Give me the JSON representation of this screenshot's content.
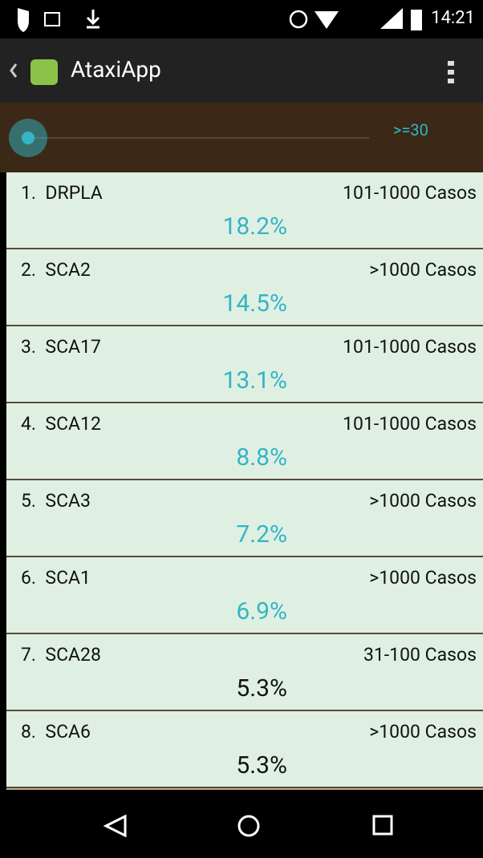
{
  "status_bar": {
    "time": "14:21"
  },
  "action_bar": {
    "title": "AtaxiApp"
  },
  "filter": {
    "label": ">=30"
  },
  "list": {
    "items": [
      {
        "rank": "1.",
        "name": "DRPLA",
        "cases": "101-1000 Casos",
        "percent": "18.2%",
        "color": "#33b5c5"
      },
      {
        "rank": "2.",
        "name": "SCA2",
        "cases": ">1000 Casos",
        "percent": "14.5%",
        "color": "#33b5c5"
      },
      {
        "rank": "3.",
        "name": "SCA17",
        "cases": "101-1000 Casos",
        "percent": "13.1%",
        "color": "#33b5c5"
      },
      {
        "rank": "4.",
        "name": "SCA12",
        "cases": "101-1000 Casos",
        "percent": "8.8%",
        "color": "#33b5c5"
      },
      {
        "rank": "5.",
        "name": "SCA3",
        "cases": ">1000 Casos",
        "percent": "7.2%",
        "color": "#33b5c5"
      },
      {
        "rank": "6.",
        "name": "SCA1",
        "cases": ">1000 Casos",
        "percent": "6.9%",
        "color": "#33b5c5"
      },
      {
        "rank": "7.",
        "name": "SCA28",
        "cases": "31-100 Casos",
        "percent": "5.3%",
        "color": "#111111"
      },
      {
        "rank": "8.",
        "name": "SCA6",
        "cases": ">1000 Casos",
        "percent": "5.3%",
        "color": "#111111"
      }
    ]
  }
}
